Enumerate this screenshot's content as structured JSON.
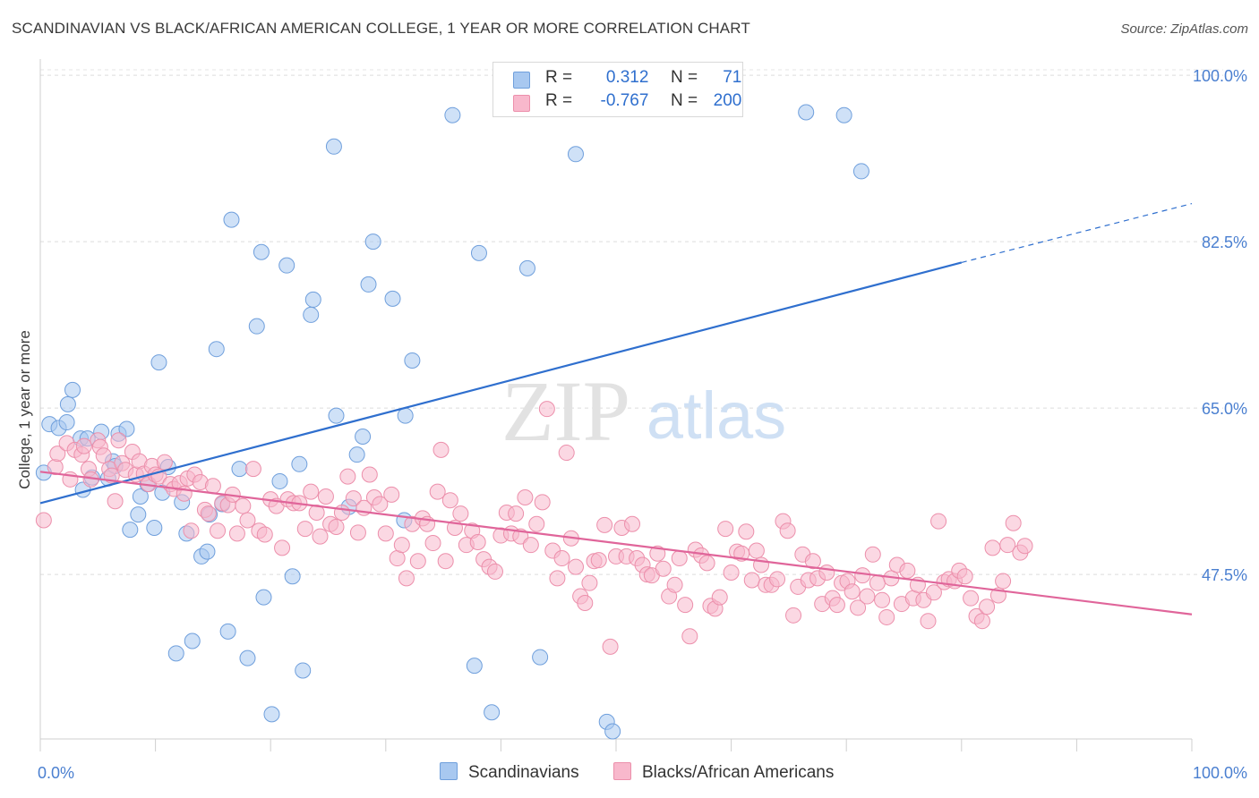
{
  "title": "SCANDINAVIAN VS BLACK/AFRICAN AMERICAN COLLEGE, 1 YEAR OR MORE CORRELATION CHART",
  "source": "Source: ZipAtlas.com",
  "watermark": {
    "zip": "ZIP",
    "atlas": "atlas"
  },
  "legend": {
    "rows": [
      {
        "r_label": "R =",
        "r_value": "0.312",
        "n_label": "N =",
        "n_value": "71",
        "color": "#a8c8f0",
        "border": "#6f9fdc"
      },
      {
        "r_label": "R =",
        "r_value": "-0.767",
        "n_label": "N =",
        "n_value": "200",
        "color": "#f8b8cc",
        "border": "#ec8fab"
      }
    ]
  },
  "bottom_legend": [
    {
      "label": "Scandinavians",
      "color": "#a8c8f0",
      "border": "#6f9fdc"
    },
    {
      "label": "Blacks/African Americans",
      "color": "#f8b8cc",
      "border": "#ec8fab"
    }
  ],
  "chart_data": {
    "type": "scatter",
    "title": "SCANDINAVIAN VS BLACK/AFRICAN AMERICAN COLLEGE, 1 YEAR OR MORE CORRELATION CHART",
    "xlabel": "",
    "ylabel": "College, 1 year or more",
    "xlim": [
      0,
      100
    ],
    "ylim": [
      30.2,
      101.7
    ],
    "x_tick_labels": [
      "0.0%",
      "100.0%"
    ],
    "y_ticks": [
      47.5,
      65.0,
      82.5,
      100.0
    ],
    "y_tick_labels": [
      "47.5%",
      "65.0%",
      "82.5%",
      "100.0%"
    ],
    "grid": "horizontal dashed",
    "legend_position": "top-center",
    "series": [
      {
        "name": "Scandinavians",
        "color": "#a8c8f0",
        "stroke": "#6f9fdc",
        "trend": {
          "x0": 0,
          "y0": 55.0,
          "x1": 80,
          "y1": 80.3,
          "dashed_to_x": 100,
          "dashed_to_y": 86.5,
          "color": "#2f6fce"
        },
        "points": [
          [
            0.3,
            58.2
          ],
          [
            0.8,
            63.3
          ],
          [
            1.6,
            62.9
          ],
          [
            2.3,
            63.5
          ],
          [
            2.4,
            65.4
          ],
          [
            2.8,
            66.9
          ],
          [
            3.5,
            61.8
          ],
          [
            3.7,
            56.4
          ],
          [
            4.1,
            61.8
          ],
          [
            4.5,
            57.7
          ],
          [
            5.3,
            62.5
          ],
          [
            5.9,
            57.6
          ],
          [
            6.3,
            59.4
          ],
          [
            6.5,
            58.9
          ],
          [
            6.8,
            62.3
          ],
          [
            7.5,
            62.8
          ],
          [
            7.8,
            52.2
          ],
          [
            8.5,
            53.8
          ],
          [
            8.7,
            55.7
          ],
          [
            9.3,
            57.0
          ],
          [
            9.9,
            52.4
          ],
          [
            10.3,
            69.8
          ],
          [
            10.6,
            56.1
          ],
          [
            11.1,
            58.8
          ],
          [
            11.8,
            39.2
          ],
          [
            12.3,
            55.1
          ],
          [
            12.7,
            51.8
          ],
          [
            13.2,
            40.5
          ],
          [
            14.0,
            49.4
          ],
          [
            14.5,
            49.9
          ],
          [
            14.7,
            53.8
          ],
          [
            15.3,
            71.2
          ],
          [
            15.8,
            54.9
          ],
          [
            16.3,
            41.5
          ],
          [
            16.6,
            84.8
          ],
          [
            17.3,
            58.6
          ],
          [
            18.0,
            38.7
          ],
          [
            18.8,
            73.6
          ],
          [
            19.2,
            81.4
          ],
          [
            19.4,
            45.1
          ],
          [
            20.1,
            32.8
          ],
          [
            20.8,
            57.3
          ],
          [
            21.4,
            80.0
          ],
          [
            21.9,
            47.3
          ],
          [
            22.5,
            59.1
          ],
          [
            22.8,
            37.4
          ],
          [
            23.5,
            74.8
          ],
          [
            23.7,
            76.4
          ],
          [
            25.5,
            92.5
          ],
          [
            25.7,
            64.2
          ],
          [
            26.8,
            54.6
          ],
          [
            27.5,
            60.1
          ],
          [
            28.0,
            62.0
          ],
          [
            28.5,
            78.0
          ],
          [
            28.9,
            82.5
          ],
          [
            30.6,
            76.5
          ],
          [
            31.6,
            53.2
          ],
          [
            31.7,
            64.2
          ],
          [
            32.3,
            70.0
          ],
          [
            35.8,
            95.8
          ],
          [
            37.7,
            37.9
          ],
          [
            38.1,
            81.3
          ],
          [
            39.2,
            33.0
          ],
          [
            42.3,
            79.7
          ],
          [
            43.4,
            38.8
          ],
          [
            46.5,
            91.7
          ],
          [
            49.2,
            32.0
          ],
          [
            49.7,
            31.0
          ],
          [
            66.5,
            96.1
          ],
          [
            69.8,
            95.8
          ],
          [
            71.3,
            89.9
          ]
        ]
      },
      {
        "name": "Blacks/African Americans",
        "color": "#f8b8cc",
        "stroke": "#ec8fab",
        "trend": {
          "x0": 0,
          "y0": 58.3,
          "x1": 100,
          "y1": 43.3,
          "color": "#e0659a"
        },
        "points": [
          [
            0.3,
            53.2
          ],
          [
            1.3,
            58.8
          ],
          [
            1.5,
            60.2
          ],
          [
            2.3,
            61.3
          ],
          [
            2.6,
            57.5
          ],
          [
            3.0,
            60.6
          ],
          [
            3.6,
            60.1
          ],
          [
            3.8,
            61.0
          ],
          [
            4.2,
            58.6
          ],
          [
            4.4,
            57.5
          ],
          [
            5.0,
            61.6
          ],
          [
            5.2,
            60.9
          ],
          [
            5.5,
            60.0
          ],
          [
            6.0,
            58.6
          ],
          [
            6.2,
            57.9
          ],
          [
            6.5,
            55.2
          ],
          [
            6.8,
            61.6
          ],
          [
            7.1,
            59.2
          ],
          [
            7.4,
            58.5
          ],
          [
            8.0,
            60.4
          ],
          [
            8.3,
            58.0
          ],
          [
            8.6,
            59.4
          ],
          [
            9.0,
            58.1
          ],
          [
            9.4,
            57.0
          ],
          [
            9.7,
            58.9
          ],
          [
            10.0,
            58.0
          ],
          [
            10.3,
            57.8
          ],
          [
            10.8,
            59.3
          ],
          [
            11.3,
            57.0
          ],
          [
            11.6,
            56.5
          ],
          [
            12.1,
            57.1
          ],
          [
            12.5,
            56.0
          ],
          [
            12.8,
            57.6
          ],
          [
            13.1,
            52.1
          ],
          [
            13.4,
            58.0
          ],
          [
            13.9,
            57.2
          ],
          [
            14.3,
            54.3
          ],
          [
            14.6,
            53.9
          ],
          [
            15.0,
            56.8
          ],
          [
            15.4,
            52.1
          ],
          [
            15.8,
            55.0
          ],
          [
            16.3,
            54.8
          ],
          [
            16.7,
            55.9
          ],
          [
            17.1,
            51.8
          ],
          [
            17.6,
            54.7
          ],
          [
            18.0,
            53.2
          ],
          [
            18.5,
            58.6
          ],
          [
            19.0,
            52.1
          ],
          [
            19.5,
            51.7
          ],
          [
            20.0,
            55.4
          ],
          [
            20.5,
            54.7
          ],
          [
            21.0,
            50.3
          ],
          [
            21.5,
            55.4
          ],
          [
            22.0,
            55.0
          ],
          [
            22.5,
            55.0
          ],
          [
            23.0,
            52.3
          ],
          [
            23.5,
            56.2
          ],
          [
            24.0,
            54.0
          ],
          [
            24.3,
            51.5
          ],
          [
            24.8,
            55.7
          ],
          [
            25.2,
            52.8
          ],
          [
            25.7,
            52.5
          ],
          [
            26.2,
            54.0
          ],
          [
            26.7,
            57.8
          ],
          [
            27.2,
            55.5
          ],
          [
            27.6,
            51.9
          ],
          [
            28.1,
            54.5
          ],
          [
            28.6,
            58.0
          ],
          [
            29.0,
            55.6
          ],
          [
            29.5,
            54.9
          ],
          [
            30.0,
            51.8
          ],
          [
            30.5,
            55.9
          ],
          [
            31.0,
            49.2
          ],
          [
            31.4,
            50.6
          ],
          [
            31.8,
            47.1
          ],
          [
            32.3,
            52.8
          ],
          [
            32.8,
            48.9
          ],
          [
            33.2,
            53.4
          ],
          [
            33.6,
            52.8
          ],
          [
            34.1,
            50.8
          ],
          [
            34.5,
            56.2
          ],
          [
            34.8,
            60.6
          ],
          [
            35.2,
            48.9
          ],
          [
            35.6,
            55.3
          ],
          [
            36.0,
            52.4
          ],
          [
            36.5,
            53.9
          ],
          [
            37.0,
            50.6
          ],
          [
            37.5,
            52.1
          ],
          [
            38.0,
            50.9
          ],
          [
            38.5,
            49.1
          ],
          [
            39.0,
            48.3
          ],
          [
            39.5,
            47.8
          ],
          [
            40.0,
            51.6
          ],
          [
            40.5,
            54.0
          ],
          [
            40.9,
            51.8
          ],
          [
            41.3,
            53.9
          ],
          [
            41.7,
            51.5
          ],
          [
            42.1,
            55.6
          ],
          [
            42.6,
            50.6
          ],
          [
            43.1,
            52.8
          ],
          [
            43.6,
            55.1
          ],
          [
            44.0,
            64.9
          ],
          [
            44.5,
            50.0
          ],
          [
            44.9,
            47.1
          ],
          [
            45.3,
            49.2
          ],
          [
            45.7,
            60.3
          ],
          [
            46.1,
            51.3
          ],
          [
            46.5,
            48.3
          ],
          [
            46.9,
            45.2
          ],
          [
            47.3,
            44.5
          ],
          [
            47.7,
            46.6
          ],
          [
            48.1,
            48.9
          ],
          [
            48.5,
            49.0
          ],
          [
            49.0,
            52.7
          ],
          [
            49.5,
            39.9
          ],
          [
            50.0,
            49.4
          ],
          [
            50.5,
            52.4
          ],
          [
            50.9,
            49.4
          ],
          [
            51.4,
            52.8
          ],
          [
            51.8,
            49.2
          ],
          [
            52.3,
            48.5
          ],
          [
            52.7,
            47.5
          ],
          [
            53.1,
            47.4
          ],
          [
            53.6,
            49.7
          ],
          [
            54.1,
            48.1
          ],
          [
            54.6,
            45.2
          ],
          [
            55.1,
            46.4
          ],
          [
            55.5,
            49.2
          ],
          [
            56.0,
            44.3
          ],
          [
            56.4,
            41.0
          ],
          [
            56.9,
            50.1
          ],
          [
            57.4,
            49.5
          ],
          [
            57.9,
            48.7
          ],
          [
            58.2,
            44.2
          ],
          [
            58.6,
            43.9
          ],
          [
            59.0,
            45.1
          ],
          [
            59.5,
            52.3
          ],
          [
            60.0,
            47.7
          ],
          [
            60.5,
            49.9
          ],
          [
            60.9,
            49.7
          ],
          [
            61.3,
            52.0
          ],
          [
            61.8,
            46.9
          ],
          [
            62.2,
            50.0
          ],
          [
            62.6,
            48.5
          ],
          [
            63.0,
            46.4
          ],
          [
            63.5,
            46.4
          ],
          [
            64.0,
            47.0
          ],
          [
            64.5,
            53.1
          ],
          [
            64.9,
            52.1
          ],
          [
            65.4,
            43.2
          ],
          [
            65.8,
            46.2
          ],
          [
            66.2,
            49.6
          ],
          [
            66.7,
            46.9
          ],
          [
            67.1,
            48.9
          ],
          [
            67.5,
            47.1
          ],
          [
            67.9,
            44.4
          ],
          [
            68.3,
            47.7
          ],
          [
            68.8,
            45.0
          ],
          [
            69.2,
            44.3
          ],
          [
            69.6,
            46.6
          ],
          [
            70.1,
            46.8
          ],
          [
            70.5,
            45.7
          ],
          [
            71.0,
            44.0
          ],
          [
            71.4,
            47.4
          ],
          [
            71.8,
            45.2
          ],
          [
            72.3,
            49.6
          ],
          [
            72.7,
            46.6
          ],
          [
            73.1,
            44.8
          ],
          [
            73.5,
            43.0
          ],
          [
            73.9,
            47.1
          ],
          [
            74.4,
            48.5
          ],
          [
            74.8,
            44.4
          ],
          [
            75.3,
            47.9
          ],
          [
            75.8,
            45.0
          ],
          [
            76.2,
            46.4
          ],
          [
            76.7,
            44.8
          ],
          [
            77.1,
            42.6
          ],
          [
            77.6,
            45.6
          ],
          [
            78.0,
            53.1
          ],
          [
            78.5,
            46.7
          ],
          [
            78.9,
            47.0
          ],
          [
            79.4,
            46.8
          ],
          [
            79.8,
            47.9
          ],
          [
            80.3,
            47.3
          ],
          [
            80.8,
            45.0
          ],
          [
            81.3,
            43.1
          ],
          [
            81.8,
            42.6
          ],
          [
            82.2,
            44.1
          ],
          [
            82.7,
            50.3
          ],
          [
            83.2,
            45.3
          ],
          [
            83.6,
            46.8
          ],
          [
            84.0,
            50.6
          ],
          [
            84.5,
            52.9
          ],
          [
            85.1,
            49.8
          ],
          [
            85.5,
            50.5
          ]
        ]
      }
    ]
  }
}
